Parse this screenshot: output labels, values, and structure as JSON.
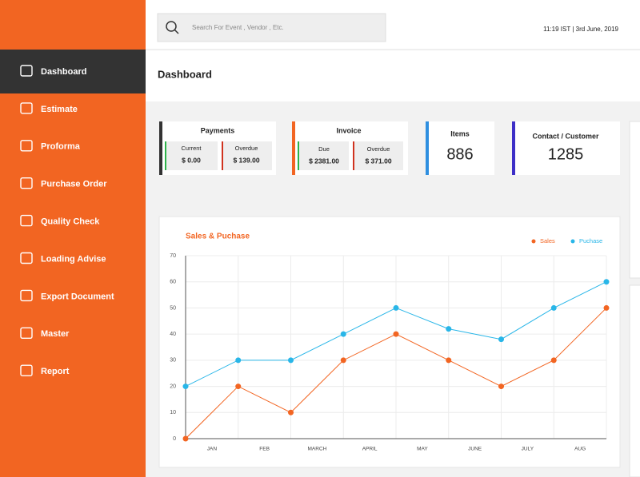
{
  "header": {
    "search_placeholder": "Search For Event , Vendor , Etc.",
    "datetime": "11:19 IST | 3rd June, 2019"
  },
  "sidebar": {
    "items": [
      "Dashboard",
      "Estimate",
      "Proforma",
      "Purchase Order",
      "Quality Check",
      "Loading Advise",
      "Export Document",
      "Master",
      "Report"
    ],
    "active": 0
  },
  "page_title": "Dashboard",
  "cards": {
    "payments": {
      "title": "Payments",
      "cells": [
        {
          "label": "Current",
          "value": "$ 0.00"
        },
        {
          "label": "Overdue",
          "value": "$ 139.00"
        }
      ]
    },
    "invoice": {
      "title": "Invoice",
      "cells": [
        {
          "label": "Due",
          "value": "$ 2381.00"
        },
        {
          "label": "Overdue",
          "value": "$ 371.00"
        }
      ]
    },
    "items": {
      "title": "Items",
      "value": 886
    },
    "contact": {
      "title": "Contact / Customer",
      "value": 1285
    }
  },
  "chart_data": {
    "type": "line",
    "title": "Sales & Puchase",
    "categories": [
      "JAN",
      "FEB",
      "MARCH",
      "APRIL",
      "MAY",
      "JUNE",
      "JULY",
      "AUG",
      null
    ],
    "series": [
      {
        "name": "Sales",
        "color": "#f26522",
        "values": [
          0,
          20,
          10,
          30,
          40,
          30,
          20,
          30,
          50
        ]
      },
      {
        "name": "Puchase",
        "color": "#29b6e8",
        "values": [
          20,
          30,
          30,
          40,
          50,
          42,
          38,
          50,
          60
        ]
      }
    ],
    "ylim": [
      0,
      70
    ],
    "yticks": [
      0,
      10,
      20,
      30,
      40,
      50,
      60,
      70
    ],
    "grid": true,
    "legend": "top-right"
  }
}
